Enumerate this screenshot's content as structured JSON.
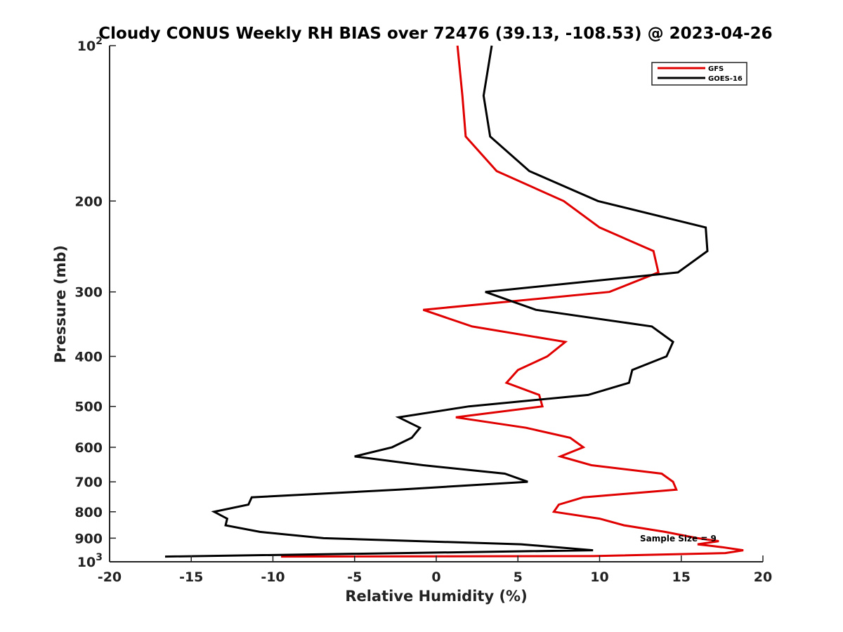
{
  "chart_data": {
    "type": "line",
    "title": "Cloudy CONUS Weekly RH BIAS over 72476 (39.13, -108.53) @ 2023-04-26",
    "xlabel": "Relative Humidity (%)",
    "ylabel": "Pressure (mb)",
    "xlim": [
      -20,
      20
    ],
    "ylim": [
      100,
      1000
    ],
    "y_scale": "log",
    "y_reversed": true,
    "grid": false,
    "legend_position": "top-right",
    "x_ticks": [
      "-20",
      "-15",
      "-10",
      "-5",
      "0",
      "5",
      "10",
      "15",
      "20"
    ],
    "y_ticks": [
      {
        "base": "10",
        "exp": "2"
      },
      {
        "base": "200",
        "exp": ""
      },
      {
        "base": "300",
        "exp": ""
      },
      {
        "base": "400",
        "exp": ""
      },
      {
        "base": "500",
        "exp": ""
      },
      {
        "base": "600",
        "exp": ""
      },
      {
        "base": "700",
        "exp": ""
      },
      {
        "base": "800",
        "exp": ""
      },
      {
        "base": "900",
        "exp": ""
      },
      {
        "base": "10",
        "exp": "3"
      }
    ],
    "annotation": "Sample Size = 9",
    "series": [
      {
        "name": "GFS",
        "color": "#e00000",
        "points": [
          [
            1.3,
            100
          ],
          [
            1.6,
            125
          ],
          [
            1.8,
            150
          ],
          [
            3.7,
            175
          ],
          [
            7.8,
            200
          ],
          [
            10,
            225
          ],
          [
            13.3,
            250
          ],
          [
            13.6,
            275
          ],
          [
            10.6,
            300
          ],
          [
            -0.8,
            325
          ],
          [
            2.2,
            350
          ],
          [
            7.9,
            375
          ],
          [
            6.8,
            400
          ],
          [
            5.0,
            425
          ],
          [
            4.3,
            450
          ],
          [
            6.3,
            475
          ],
          [
            6.5,
            500
          ],
          [
            1.2,
            525
          ],
          [
            5.5,
            550
          ],
          [
            8.2,
            575
          ],
          [
            9.0,
            600
          ],
          [
            7.6,
            625
          ],
          [
            9.5,
            650
          ],
          [
            13.8,
            675
          ],
          [
            14.5,
            700
          ],
          [
            14.7,
            725
          ],
          [
            9.0,
            750
          ],
          [
            7.5,
            775
          ],
          [
            7.2,
            800
          ],
          [
            10.0,
            825
          ],
          [
            11.5,
            850
          ],
          [
            14.0,
            875
          ],
          [
            16.0,
            900
          ],
          [
            17.3,
            912
          ],
          [
            16.0,
            925
          ],
          [
            17.5,
            937
          ],
          [
            18.8,
            950
          ],
          [
            17.7,
            962
          ],
          [
            9.6,
            975
          ],
          [
            -9.5,
            977
          ]
        ]
      },
      {
        "name": "GOES-16",
        "color": "#000000",
        "points": [
          [
            3.4,
            100
          ],
          [
            2.9,
            125
          ],
          [
            3.3,
            150
          ],
          [
            5.7,
            175
          ],
          [
            9.9,
            200
          ],
          [
            16.5,
            225
          ],
          [
            16.6,
            250
          ],
          [
            14.8,
            275
          ],
          [
            3.0,
            300
          ],
          [
            6.1,
            325
          ],
          [
            13.2,
            350
          ],
          [
            14.5,
            375
          ],
          [
            14.1,
            400
          ],
          [
            12.0,
            425
          ],
          [
            11.8,
            450
          ],
          [
            9.3,
            475
          ],
          [
            2.0,
            500
          ],
          [
            -2.3,
            525
          ],
          [
            -1.0,
            550
          ],
          [
            -1.5,
            575
          ],
          [
            -2.7,
            600
          ],
          [
            -5.0,
            625
          ],
          [
            -0.8,
            650
          ],
          [
            4.2,
            675
          ],
          [
            5.6,
            700
          ],
          [
            -2.3,
            725
          ],
          [
            -11.3,
            750
          ],
          [
            -11.5,
            775
          ],
          [
            -13.6,
            800
          ],
          [
            -12.8,
            825
          ],
          [
            -12.9,
            850
          ],
          [
            -10.8,
            875
          ],
          [
            -6.9,
            900
          ],
          [
            5.2,
            925
          ],
          [
            9.6,
            950
          ],
          [
            -16.6,
            977
          ]
        ]
      }
    ]
  }
}
